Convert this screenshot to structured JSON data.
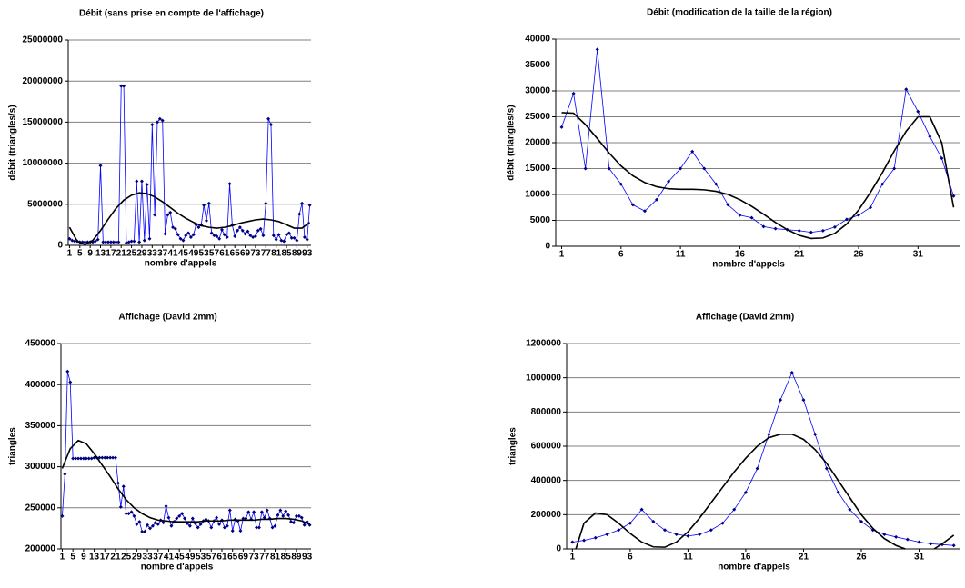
{
  "chart_data": [
    {
      "type": "line",
      "title": "Débit (sans prise en compte de l'affichage)",
      "x_label": "nombre d'appels",
      "y_label": "débit (triangles/s)",
      "x": [
        1,
        2,
        3,
        4,
        5,
        6,
        7,
        8,
        9,
        10,
        11,
        12,
        13,
        14,
        15,
        16,
        17,
        18,
        19,
        20,
        21,
        22,
        23,
        24,
        25,
        26,
        27,
        28,
        29,
        30,
        31,
        32,
        33,
        34,
        35,
        36,
        37,
        38,
        39,
        40,
        41,
        42,
        43,
        44,
        45,
        46,
        47,
        48,
        49,
        50,
        51,
        52,
        53,
        54,
        55,
        56,
        57,
        58,
        59,
        60,
        61,
        62,
        63,
        64,
        65,
        66,
        67,
        68,
        69,
        70,
        71,
        72,
        73,
        74,
        75,
        76,
        77,
        78,
        79,
        80,
        81,
        82,
        83,
        84,
        85,
        86,
        87,
        88,
        89,
        90,
        91,
        92,
        93,
        94
      ],
      "xlim": [
        0.5,
        94.5
      ],
      "xticks": [
        1,
        5,
        9,
        13,
        17,
        21,
        25,
        29,
        33,
        37,
        41,
        45,
        49,
        53,
        57,
        61,
        65,
        69,
        73,
        77,
        81,
        85,
        89,
        93
      ],
      "ylim": [
        0,
        25000000
      ],
      "yticks": [
        0,
        5000000,
        10000000,
        15000000,
        20000000,
        25000000
      ],
      "grid": true,
      "series": [
        {
          "color": "#0000ff",
          "marker": "diamond",
          "marker_color": "#000080",
          "values": [
            800000,
            600000,
            500000,
            500000,
            400000,
            400000,
            400000,
            400000,
            400000,
            400000,
            500000,
            700000,
            9700000,
            400000,
            400000,
            400000,
            400000,
            400000,
            400000,
            400000,
            19400000,
            19400000,
            300000,
            400000,
            500000,
            500000,
            7800000,
            400000,
            7800000,
            600000,
            7400000,
            800000,
            14700000,
            3700000,
            15000000,
            15400000,
            15200000,
            1400000,
            3700000,
            4000000,
            2200000,
            2000000,
            1300000,
            800000,
            600000,
            1200000,
            1500000,
            1000000,
            1300000,
            2500000,
            2200000,
            2500000,
            4900000,
            3000000,
            5100000,
            1500000,
            1200000,
            1100000,
            800000,
            1900000,
            1300000,
            1000000,
            7500000,
            2500000,
            1100000,
            1800000,
            2200000,
            1800000,
            1400000,
            1700000,
            1200000,
            1000000,
            1100000,
            1800000,
            2000000,
            1200000,
            5100000,
            15400000,
            14700000,
            1200000,
            700000,
            1300000,
            600000,
            500000,
            1300000,
            1500000,
            900000,
            900000,
            600000,
            3800000,
            5100000,
            1000000,
            700000,
            4900000
          ]
        },
        {
          "color": "#000000",
          "x": [
            1,
            4,
            7,
            10,
            13,
            16,
            19,
            22,
            25,
            28,
            31,
            34,
            37,
            40,
            43,
            46,
            49,
            52,
            55,
            58,
            61,
            64,
            67,
            70,
            73,
            76,
            79,
            82,
            85,
            88,
            91,
            94
          ],
          "values": [
            2200000,
            500000,
            100000,
            600000,
            1800000,
            3200000,
            4500000,
            5500000,
            6100000,
            6400000,
            6300000,
            5900000,
            5300000,
            4600000,
            3900000,
            3300000,
            2800000,
            2400000,
            2200000,
            2100000,
            2200000,
            2400000,
            2700000,
            2900000,
            3100000,
            3200000,
            3100000,
            2900000,
            2500000,
            2100000,
            2100000,
            2800000
          ]
        }
      ]
    },
    {
      "type": "line",
      "title": "Débit (modification de la taille de la région)",
      "x_label": "nombre d'appels",
      "y_label": "débit (triangles/s)",
      "x": [
        1,
        2,
        3,
        4,
        5,
        6,
        7,
        8,
        9,
        10,
        11,
        12,
        13,
        14,
        15,
        16,
        17,
        18,
        19,
        20,
        21,
        22,
        23,
        24,
        25,
        26,
        27,
        28,
        29,
        30,
        31,
        32,
        33,
        34
      ],
      "xlim": [
        0.5,
        34.5
      ],
      "xticks": [
        1,
        6,
        11,
        16,
        21,
        26,
        31
      ],
      "ylim": [
        0,
        40000
      ],
      "yticks": [
        0,
        5000,
        10000,
        15000,
        20000,
        25000,
        30000,
        35000,
        40000
      ],
      "grid": true,
      "series": [
        {
          "color": "#0000ff",
          "marker": "diamond",
          "marker_color": "#000080",
          "values": [
            23000,
            29500,
            15000,
            38000,
            15000,
            12000,
            8000,
            6800,
            9000,
            12500,
            15000,
            18300,
            15000,
            12000,
            8000,
            6000,
            5500,
            3800,
            3400,
            3200,
            3000,
            2700,
            3000,
            3700,
            5200,
            6000,
            7500,
            12000,
            15000,
            30300,
            26000,
            21200,
            17000,
            9700
          ]
        },
        {
          "color": "#000000",
          "x": [
            1,
            2,
            3,
            4,
            5,
            6,
            7,
            8,
            9,
            10,
            11,
            12,
            13,
            14,
            15,
            16,
            17,
            18,
            19,
            20,
            21,
            22,
            23,
            24,
            25,
            26,
            27,
            28,
            29,
            30,
            31,
            32,
            33,
            34
          ],
          "values": [
            25800,
            25700,
            23500,
            20800,
            18000,
            15500,
            13600,
            12300,
            11500,
            11100,
            11000,
            11000,
            10900,
            10600,
            10000,
            9000,
            7700,
            6200,
            4600,
            3200,
            2100,
            1500,
            1600,
            2500,
            4300,
            7000,
            10400,
            14200,
            18400,
            22200,
            25000,
            25000,
            20000,
            7500
          ]
        }
      ]
    },
    {
      "type": "line",
      "title": "Affichage (David 2mm)",
      "x_label": "nombre d'appels",
      "y_label": "triangles",
      "x": [
        1,
        2,
        3,
        4,
        5,
        6,
        7,
        8,
        9,
        10,
        11,
        12,
        13,
        14,
        15,
        16,
        17,
        18,
        19,
        20,
        21,
        22,
        23,
        24,
        25,
        26,
        27,
        28,
        29,
        30,
        31,
        32,
        33,
        34,
        35,
        36,
        37,
        38,
        39,
        40,
        41,
        42,
        43,
        44,
        45,
        46,
        47,
        48,
        49,
        50,
        51,
        52,
        53,
        54,
        55,
        56,
        57,
        58,
        59,
        60,
        61,
        62,
        63,
        64,
        65,
        66,
        67,
        68,
        69,
        70,
        71,
        72,
        73,
        74,
        75,
        76,
        77,
        78,
        79,
        80,
        81,
        82,
        83,
        84,
        85,
        86,
        87,
        88,
        89,
        90,
        91,
        92,
        93,
        94
      ],
      "xlim": [
        0.5,
        94.5
      ],
      "xticks": [
        1,
        5,
        9,
        13,
        17,
        21,
        25,
        29,
        33,
        37,
        41,
        45,
        49,
        53,
        57,
        61,
        65,
        69,
        73,
        77,
        81,
        85,
        89,
        93
      ],
      "ylim": [
        200000,
        450000
      ],
      "yticks": [
        200000,
        250000,
        300000,
        350000,
        400000,
        450000
      ],
      "grid": true,
      "series": [
        {
          "color": "#0000ff",
          "marker": "diamond",
          "marker_color": "#000080",
          "values": [
            240000,
            291000,
            416000,
            403000,
            310000,
            310000,
            310000,
            310000,
            310000,
            310000,
            310000,
            310000,
            311000,
            311000,
            311000,
            311000,
            311000,
            311000,
            311000,
            311000,
            311000,
            280000,
            251000,
            276000,
            243000,
            243000,
            245000,
            240000,
            230000,
            233000,
            221000,
            221000,
            229000,
            225000,
            228000,
            232000,
            230000,
            235000,
            232000,
            252000,
            238000,
            228000,
            233000,
            237000,
            240000,
            243000,
            237000,
            231000,
            228000,
            237000,
            231000,
            226000,
            230000,
            234000,
            236000,
            234000,
            226000,
            234000,
            238000,
            230000,
            235000,
            226000,
            228000,
            247000,
            222000,
            236000,
            234000,
            222000,
            237000,
            237000,
            245000,
            236000,
            245000,
            226000,
            226000,
            245000,
            238000,
            247000,
            237000,
            226000,
            228000,
            241000,
            247000,
            240000,
            246000,
            241000,
            233000,
            232000,
            240000,
            240000,
            238000,
            229000,
            233000,
            229000
          ]
        },
        {
          "color": "#000000",
          "x": [
            1,
            4,
            7,
            10,
            13,
            16,
            19,
            22,
            25,
            28,
            31,
            34,
            37,
            40,
            43,
            46,
            49,
            52,
            55,
            58,
            61,
            64,
            67,
            70,
            73,
            76,
            79,
            82,
            85,
            88,
            91,
            94
          ],
          "values": [
            298000,
            322000,
            332000,
            328000,
            316000,
            302000,
            288000,
            273000,
            260000,
            250000,
            243000,
            238000,
            235000,
            234000,
            233000,
            233000,
            233000,
            233000,
            234000,
            234000,
            234000,
            235000,
            235000,
            235000,
            235000,
            236000,
            236000,
            237000,
            237000,
            236000,
            234000,
            230000
          ]
        }
      ]
    },
    {
      "type": "line",
      "title": "Affichage (David 2mm)",
      "x_label": "nombre d'appels",
      "y_label": "triangles",
      "x": [
        1,
        2,
        3,
        4,
        5,
        6,
        7,
        8,
        9,
        10,
        11,
        12,
        13,
        14,
        15,
        16,
        17,
        18,
        19,
        20,
        21,
        22,
        23,
        24,
        25,
        26,
        27,
        28,
        29,
        30,
        31,
        32,
        33,
        34
      ],
      "xlim": [
        0.5,
        34.5
      ],
      "xticks": [
        1,
        6,
        11,
        16,
        21,
        26,
        31
      ],
      "ylim": [
        0,
        1200000
      ],
      "yticks": [
        0,
        200000,
        400000,
        600000,
        800000,
        1000000,
        1200000
      ],
      "grid": true,
      "series": [
        {
          "color": "#0000ff",
          "marker": "diamond",
          "marker_color": "#000080",
          "values": [
            40000,
            50000,
            65000,
            85000,
            110000,
            150000,
            230000,
            160000,
            110000,
            85000,
            75000,
            85000,
            110000,
            150000,
            230000,
            330000,
            470000,
            670000,
            870000,
            1030000,
            870000,
            670000,
            470000,
            330000,
            230000,
            160000,
            110000,
            85000,
            70000,
            55000,
            40000,
            30000,
            25000,
            20000
          ]
        },
        {
          "color": "#000000",
          "x": [
            1.3,
            2,
            3,
            4,
            5,
            6,
            7,
            8,
            9,
            10,
            11,
            12,
            13,
            14,
            15,
            16,
            17,
            18,
            19,
            20,
            21,
            22,
            23,
            24,
            25,
            26,
            27,
            28,
            29,
            29.8,
            31,
            32.3,
            33,
            34
          ],
          "values": [
            0,
            150000,
            210000,
            200000,
            150000,
            90000,
            40000,
            12000,
            10000,
            40000,
            100000,
            180000,
            270000,
            360000,
            450000,
            530000,
            600000,
            650000,
            670000,
            670000,
            640000,
            580000,
            500000,
            400000,
            300000,
            200000,
            120000,
            60000,
            20000,
            0,
            null,
            0,
            30000,
            80000
          ]
        }
      ]
    }
  ]
}
